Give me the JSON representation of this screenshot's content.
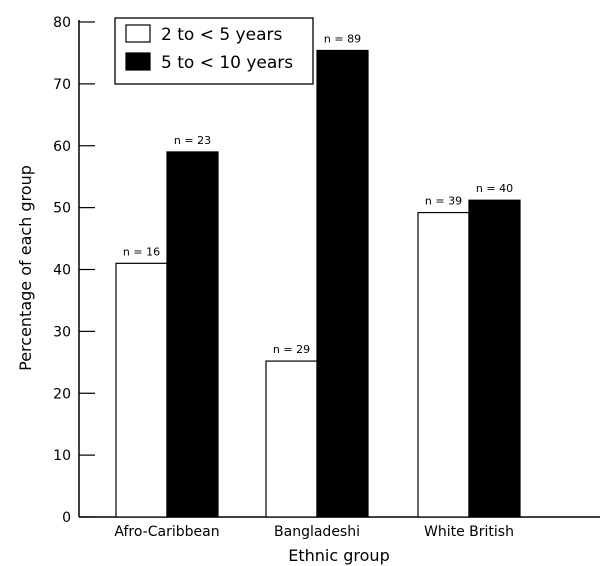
{
  "chart_data": {
    "type": "bar",
    "categories": [
      "Afro-Caribbean",
      "Bangladeshi",
      "White British"
    ],
    "series": [
      {
        "name": "2 to < 5 years",
        "values": [
          41,
          25.2,
          49.2
        ],
        "labels": [
          "n = 16",
          "n = 29",
          "n = 39"
        ],
        "color": "#ffffff"
      },
      {
        "name": "5 to < 10 years",
        "values": [
          59,
          75.4,
          51.2
        ],
        "labels": [
          "n = 23",
          "n = 89",
          "n = 40"
        ],
        "color": "#000000"
      }
    ],
    "xlabel": "Ethnic group",
    "ylabel": "Percentage of each group",
    "ylim": [
      0,
      80
    ],
    "yticks": [
      0,
      10,
      20,
      30,
      40,
      50,
      60,
      70,
      80
    ],
    "grid": false,
    "legend": "top-left"
  }
}
